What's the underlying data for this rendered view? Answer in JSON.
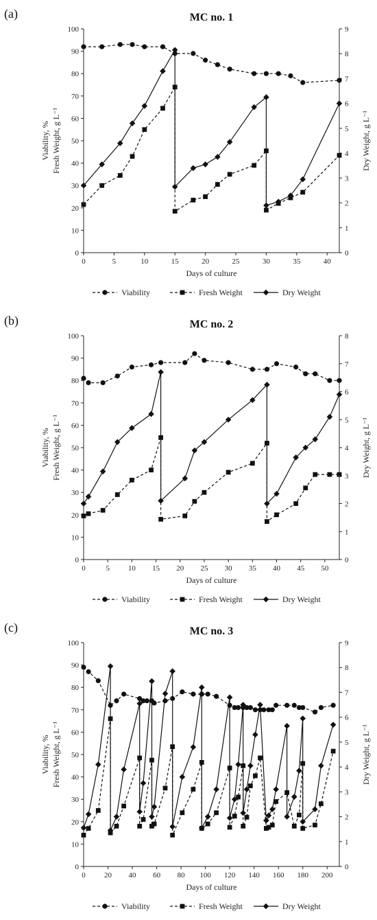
{
  "chart_data": [
    {
      "type": "line",
      "panel_label": "(a)",
      "title": "MC no. 1",
      "xlabel": "Days of culture",
      "ylabel_left": [
        "Viability, %",
        "Fresh Weight, g L⁻¹"
      ],
      "ylabel_right": "Dry Weight, g L⁻¹",
      "xlim": [
        0,
        42
      ],
      "xticks": [
        0,
        5,
        10,
        15,
        20,
        25,
        30,
        35,
        40
      ],
      "ylim_left": [
        0,
        100
      ],
      "yticks_left": [
        0,
        10,
        20,
        30,
        40,
        50,
        60,
        70,
        80,
        90,
        100
      ],
      "ylim_right": [
        0,
        9
      ],
      "yticks_right": [
        0,
        1,
        2,
        3,
        4,
        5,
        6,
        7,
        8,
        9
      ],
      "grid": false,
      "legend_position": "bottom",
      "series": [
        {
          "name": "Viability",
          "axis": "left",
          "marker": "circle",
          "style": "dashed",
          "x": [
            0,
            3,
            6,
            8,
            10,
            13,
            15,
            18,
            20,
            22,
            24,
            28,
            30,
            32,
            34,
            36,
            42
          ],
          "y": [
            92,
            92,
            93,
            93,
            92,
            92,
            89,
            89,
            86,
            84,
            82,
            80,
            80,
            80,
            79,
            76,
            77
          ]
        },
        {
          "name": "Fresh Weight",
          "axis": "left",
          "marker": "square",
          "style": "dashed",
          "x": [
            0,
            3,
            6,
            8,
            10,
            13,
            15,
            15,
            18,
            20,
            22,
            24,
            28,
            30,
            30,
            32,
            34,
            36,
            42
          ],
          "y": [
            21.5,
            30,
            34.5,
            43,
            55,
            64.5,
            74,
            18.5,
            23.5,
            25,
            30.5,
            35,
            39,
            45.5,
            19,
            22,
            24.5,
            27,
            43.5
          ]
        },
        {
          "name": "Dry Weight",
          "axis": "right",
          "marker": "diamond",
          "style": "solid",
          "x": [
            0,
            3,
            6,
            8,
            10,
            13,
            15,
            15,
            18,
            20,
            22,
            24,
            28,
            30,
            30,
            32,
            34,
            36,
            42
          ],
          "y": [
            2.7,
            3.55,
            4.4,
            5.2,
            5.9,
            7.3,
            8.15,
            2.65,
            3.4,
            3.55,
            3.85,
            4.45,
            5.85,
            6.25,
            1.9,
            2.05,
            2.3,
            2.95,
            6.0
          ]
        }
      ]
    },
    {
      "type": "line",
      "panel_label": "(b)",
      "title": "MC no. 2",
      "xlabel": "Days of culture",
      "ylabel_left": [
        "Viability, %",
        "Fresh Weight, g L⁻¹"
      ],
      "ylabel_right": "Dry Weight, g L⁻¹",
      "xlim": [
        0,
        53
      ],
      "xticks": [
        0,
        5,
        10,
        15,
        20,
        25,
        30,
        35,
        40,
        45,
        50
      ],
      "ylim_left": [
        0,
        100
      ],
      "yticks_left": [
        0,
        10,
        20,
        30,
        40,
        50,
        60,
        70,
        80,
        90,
        100
      ],
      "ylim_right": [
        0,
        8
      ],
      "yticks_right": [
        0,
        1,
        2,
        3,
        4,
        5,
        6,
        7,
        8
      ],
      "grid": false,
      "legend_position": "bottom",
      "series": [
        {
          "name": "Viability",
          "axis": "left",
          "marker": "circle",
          "style": "dashed",
          "x": [
            0,
            1,
            4,
            7,
            10,
            14,
            16,
            21,
            23,
            25,
            30,
            35,
            38,
            40,
            44,
            46,
            48,
            51,
            53
          ],
          "y": [
            81,
            79,
            79,
            82,
            86,
            87,
            88,
            88,
            92,
            89,
            88,
            85,
            85,
            87.5,
            86,
            83,
            83,
            80,
            80
          ]
        },
        {
          "name": "Fresh Weight",
          "axis": "left",
          "marker": "square",
          "style": "dashed",
          "x": [
            0,
            1,
            4,
            7,
            10,
            14,
            16,
            16,
            21,
            23,
            25,
            30,
            35,
            38,
            38,
            40,
            44,
            46,
            48,
            51,
            53
          ],
          "y": [
            19.5,
            20.5,
            22,
            29,
            35.5,
            40,
            54.5,
            18,
            19.5,
            26,
            30,
            39,
            43,
            52,
            17,
            20,
            25,
            32,
            38,
            38,
            38
          ]
        },
        {
          "name": "Dry Weight",
          "axis": "right",
          "marker": "diamond",
          "style": "solid",
          "x": [
            0,
            1,
            4,
            7,
            10,
            14,
            16,
            16,
            21,
            23,
            25,
            30,
            35,
            38,
            38,
            40,
            44,
            46,
            48,
            51,
            53
          ],
          "y": [
            2.0,
            2.25,
            3.15,
            4.2,
            4.7,
            5.2,
            6.7,
            2.1,
            2.9,
            3.9,
            4.2,
            5.0,
            5.7,
            6.25,
            2.0,
            2.35,
            3.65,
            4.0,
            4.3,
            5.1,
            5.9
          ]
        }
      ]
    },
    {
      "type": "line",
      "panel_label": "(c)",
      "title": "MC no. 3",
      "xlabel": "Days of culture",
      "ylabel_left": [
        "Viability, %",
        "Fresh Weight, g L⁻¹"
      ],
      "ylabel_right": "Dry Weight, g L⁻¹",
      "xlim": [
        0,
        210
      ],
      "xticks": [
        0,
        20,
        40,
        60,
        80,
        100,
        120,
        140,
        160,
        180,
        200
      ],
      "ylim_left": [
        0,
        100
      ],
      "yticks_left": [
        0,
        10,
        20,
        30,
        40,
        50,
        60,
        70,
        80,
        90,
        100
      ],
      "ylim_right": [
        0,
        9
      ],
      "yticks_right": [
        0,
        1,
        2,
        3,
        4,
        5,
        6,
        7,
        8,
        9
      ],
      "grid": false,
      "legend_position": "bottom",
      "series": [
        {
          "name": "Viability",
          "axis": "left",
          "marker": "circle",
          "style": "dashed",
          "x": [
            0,
            4,
            12,
            22,
            27,
            33,
            46,
            49,
            52,
            56,
            58,
            67,
            73,
            81,
            90,
            97,
            102,
            109,
            120,
            124,
            127,
            131,
            134,
            137,
            141,
            145,
            148,
            152,
            155,
            158,
            167,
            173,
            177,
            180,
            190,
            195,
            205
          ],
          "y": [
            89,
            87,
            83,
            72,
            74,
            77,
            75,
            74,
            74,
            74,
            73,
            74,
            75,
            78,
            77,
            77,
            77,
            76,
            72,
            71,
            71,
            71,
            71,
            71,
            70,
            70,
            70,
            70,
            70,
            72,
            72,
            72,
            71,
            71,
            69,
            71,
            72
          ]
        },
        {
          "name": "Fresh Weight",
          "axis": "left",
          "marker": "square",
          "style": "dashed",
          "x": [
            0,
            4,
            12,
            22,
            22,
            27,
            33,
            46,
            46,
            49,
            56,
            56,
            58,
            67,
            73,
            73,
            81,
            90,
            97,
            97,
            102,
            109,
            120,
            120,
            124,
            127,
            131,
            131,
            134,
            137,
            141,
            145,
            150,
            150,
            152,
            155,
            158,
            167,
            173,
            177,
            180,
            180,
            190,
            195,
            205
          ],
          "y": [
            14,
            17,
            25,
            66,
            15,
            18,
            27,
            48.5,
            18,
            21,
            47.5,
            18,
            19,
            35,
            53.5,
            14,
            24,
            34.5,
            46.5,
            17,
            19,
            24,
            44,
            17.5,
            22.5,
            31,
            45,
            18,
            22,
            36,
            40.5,
            48.5,
            17,
            17,
            17.5,
            18.5,
            29,
            33,
            18,
            23,
            46,
            17,
            18.5,
            28,
            51.5
          ]
        },
        {
          "name": "Dry Weight",
          "axis": "right",
          "marker": "diamond",
          "style": "solid",
          "x": [
            0,
            4,
            12,
            22,
            22,
            27,
            33,
            46,
            46,
            49,
            56,
            56,
            58,
            67,
            73,
            73,
            81,
            90,
            97,
            97,
            102,
            109,
            120,
            120,
            124,
            127,
            131,
            131,
            134,
            137,
            141,
            145,
            150,
            150,
            152,
            155,
            158,
            167,
            167,
            173,
            177,
            180,
            180,
            190,
            195,
            205
          ],
          "y": [
            1.55,
            2.1,
            4.1,
            8.05,
            1.45,
            2.0,
            3.9,
            6.55,
            2.2,
            3.35,
            7.45,
            2.0,
            2.4,
            6.95,
            7.85,
            1.6,
            3.6,
            4.8,
            7.2,
            1.55,
            2.0,
            3.1,
            6.8,
            1.95,
            2.7,
            4.1,
            6.5,
            2.15,
            3.1,
            4.05,
            5.3,
            6.5,
            1.85,
            1.85,
            2.05,
            2.3,
            3.1,
            5.65,
            2.0,
            2.8,
            3.85,
            5.95,
            1.8,
            2.3,
            4.05,
            5.7
          ]
        }
      ]
    }
  ]
}
